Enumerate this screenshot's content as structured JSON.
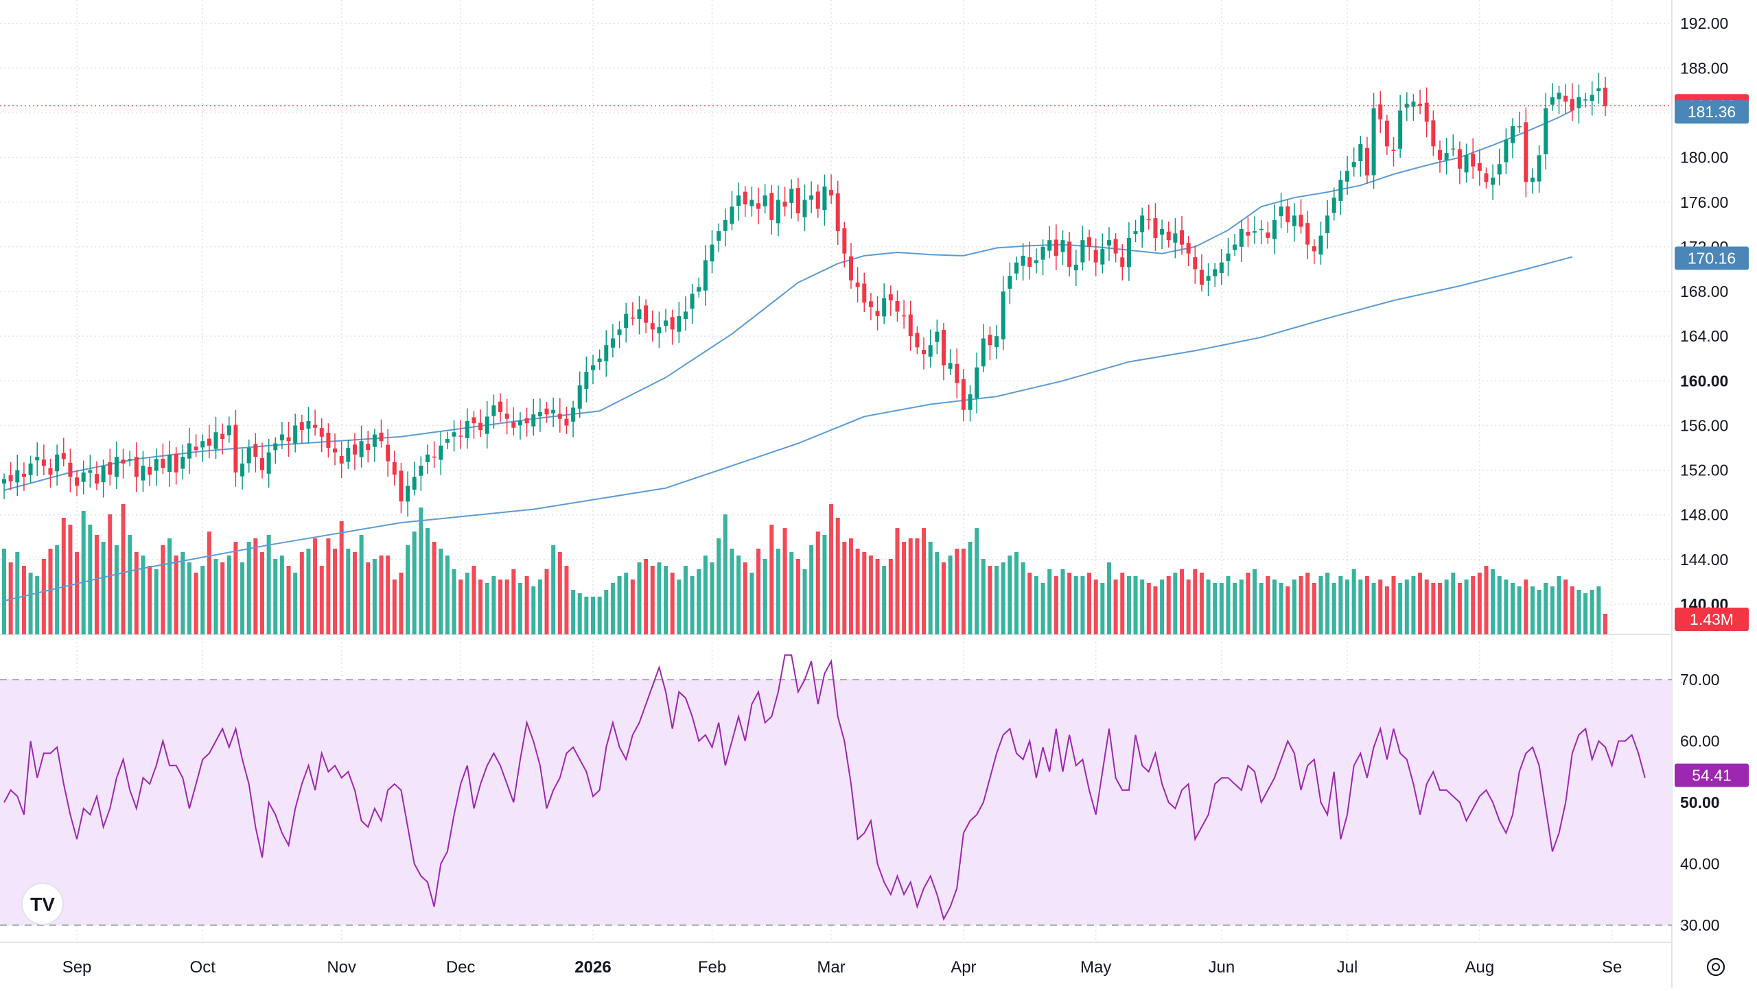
{
  "chart_data": [
    {
      "type": "candlestick",
      "title": "",
      "price_axis": {
        "ticks": [
          "192.00",
          "188.00",
          "184.00",
          "180.00",
          "176.00",
          "172.00",
          "168.00",
          "164.00",
          "160.00",
          "156.00",
          "152.00",
          "148.00",
          "144.00",
          "140.00"
        ],
        "bold_ticks": [
          "160.00",
          "140.00"
        ],
        "ylim": [
          137.3,
          194.1
        ]
      },
      "time_axis": {
        "labels": [
          "Sep",
          "Oct",
          "Nov",
          "Dec",
          "2026",
          "Feb",
          "Mar",
          "Apr",
          "May",
          "Jun",
          "Jul",
          "Aug",
          "Se"
        ],
        "bold_labels": [
          "2026"
        ],
        "label_bar_index": [
          11,
          30,
          51,
          69,
          89,
          107,
          125,
          145,
          165,
          184,
          203,
          223,
          243
        ]
      },
      "last_price": {
        "value": 184.63,
        "label": "184.63",
        "color": "#f23645"
      },
      "candle_colors": {
        "up": "#089981",
        "down": "#f23645"
      },
      "series": [
        {
          "name": "",
          "type": "ohlc",
          "close": [
            151.2,
            151.0,
            152.0,
            151.4,
            152.6,
            153.2,
            152.4,
            151.6,
            153.4,
            153.0,
            151.4,
            150.6,
            151.8,
            152.0,
            150.8,
            152.4,
            151.6,
            153.2,
            152.6,
            153.0,
            151.4,
            152.4,
            151.6,
            153.0,
            152.2,
            153.4,
            151.8,
            153.2,
            154.4,
            153.8,
            154.6,
            154.2,
            155.4,
            154.8,
            156.0,
            151.8,
            152.6,
            154.0,
            153.2,
            152.0,
            153.6,
            154.4,
            155.2,
            154.6,
            156.0,
            155.6,
            156.4,
            155.8,
            155.0,
            154.0,
            153.6,
            152.6,
            154.0,
            153.4,
            154.6,
            153.8,
            155.2,
            154.6,
            152.8,
            151.6,
            149.2,
            150.6,
            151.4,
            152.4,
            153.4,
            153.2,
            154.2,
            154.8,
            155.4,
            155.0,
            156.4,
            156.2,
            155.6,
            156.8,
            157.8,
            157.2,
            156.6,
            155.8,
            156.4,
            156.2,
            157.0,
            157.2,
            157.0,
            157.4,
            156.6,
            156.0,
            157.6,
            159.6,
            160.8,
            161.4,
            162.0,
            163.2,
            163.8,
            164.6,
            166.0,
            165.6,
            166.4,
            165.2,
            164.6,
            164.8,
            165.4,
            164.6,
            165.8,
            166.2,
            167.8,
            168.4,
            170.8,
            172.2,
            173.4,
            174.4,
            175.6,
            176.6,
            175.8,
            176.2,
            175.4,
            176.6,
            174.4,
            176.2,
            175.6,
            177.2,
            175.0,
            176.2,
            176.6,
            175.4,
            177.4,
            176.6,
            173.4,
            171.4,
            169.0,
            168.4,
            167.0,
            166.6,
            165.8,
            167.4,
            167.2,
            166.2,
            165.8,
            164.0,
            163.0,
            162.4,
            163.2,
            164.4,
            161.4,
            161.6,
            159.8,
            157.4,
            158.8,
            161.2,
            163.8,
            163.2,
            164.0,
            168.0,
            169.4,
            170.6,
            171.2,
            170.2,
            170.8,
            172.0,
            172.6,
            171.2,
            172.6,
            170.2,
            170.4,
            172.6,
            172.0,
            170.6,
            171.8,
            172.6,
            171.4,
            170.2,
            172.8,
            173.4,
            174.8,
            174.4,
            172.8,
            173.6,
            172.6,
            173.2,
            172.2,
            171.4,
            170.0,
            168.6,
            169.4,
            170.0,
            170.6,
            171.4,
            172.2,
            173.6,
            173.0,
            173.4,
            173.6,
            172.8,
            174.4,
            175.6,
            174.2,
            174.8,
            173.8,
            172.2,
            171.6,
            173.0,
            174.8,
            176.4,
            178.0,
            178.8,
            179.6,
            181.2,
            178.4,
            184.4,
            183.4,
            181.0,
            180.6,
            184.2,
            184.8,
            185.0,
            184.6,
            183.2,
            181.0,
            179.8,
            180.4,
            180.8,
            179.0,
            180.2,
            179.2,
            178.8,
            177.8,
            178.2,
            179.4,
            181.6,
            182.8,
            182.8,
            177.8,
            178.2,
            180.2,
            184.4,
            185.4,
            185.8,
            185.0,
            184.2,
            185.4,
            185.2,
            185.6,
            186.2,
            184.6
          ],
          "ohlc_note": "open/high/low are derived in the render script from each close"
        },
        {
          "name": "",
          "type": "moving_average",
          "color": "#5b9bd5",
          "label": "181.36",
          "x": [
            0,
            10,
            20,
            30,
            40,
            50,
            60,
            70,
            80,
            90,
            100,
            110,
            120,
            126,
            130,
            135,
            140,
            145,
            150,
            155,
            160,
            165,
            170,
            175,
            180,
            185,
            190,
            195,
            200,
            205,
            210,
            215,
            220,
            225,
            230,
            235,
            237
          ],
          "y": [
            150.2,
            151.8,
            153.0,
            153.7,
            154.2,
            154.6,
            155.0,
            155.8,
            156.6,
            157.3,
            160.3,
            164.2,
            168.8,
            170.5,
            171.2,
            171.5,
            171.3,
            171.2,
            171.9,
            172.1,
            172.2,
            172.0,
            171.7,
            171.4,
            172.0,
            173.5,
            175.6,
            176.4,
            176.9,
            177.5,
            178.5,
            179.3,
            180.0,
            181.1,
            182.3,
            183.6,
            184.2
          ],
          "last_value": 181.36
        },
        {
          "name": "",
          "type": "moving_average",
          "color": "#5b9bd5",
          "label": "170.16",
          "x": [
            0,
            20,
            40,
            60,
            80,
            100,
            120,
            130,
            140,
            150,
            160,
            170,
            180,
            190,
            200,
            210,
            220,
            230,
            237
          ],
          "y": [
            140.3,
            143.1,
            145.3,
            147.3,
            148.5,
            150.4,
            154.4,
            156.8,
            157.9,
            158.6,
            160.0,
            161.7,
            162.7,
            163.9,
            165.6,
            167.2,
            168.5,
            170.0,
            171.1
          ],
          "last_value": 170.16
        }
      ]
    },
    {
      "type": "bar",
      "title": "",
      "label": "1.43M",
      "note": "volume in arbitrary units; pane shares the price chart's time axis",
      "colors": {
        "up": "#22ab94",
        "down": "#f23645"
      },
      "values": [
        5.0,
        4.2,
        4.8,
        4.0,
        3.6,
        3.4,
        4.4,
        5.0,
        5.2,
        6.8,
        6.4,
        4.8,
        7.2,
        6.4,
        5.8,
        5.4,
        7.0,
        5.2,
        7.6,
        5.8,
        4.8,
        4.6,
        4.0,
        3.8,
        5.2,
        5.6,
        4.6,
        4.8,
        4.2,
        3.6,
        4.0,
        6.0,
        4.4,
        4.2,
        4.6,
        5.4,
        4.2,
        5.4,
        5.6,
        4.8,
        5.8,
        4.4,
        4.6,
        4.0,
        3.6,
        4.8,
        5.0,
        5.6,
        4.0,
        5.6,
        5.0,
        6.6,
        5.0,
        4.8,
        5.8,
        4.2,
        4.4,
        4.6,
        4.6,
        3.2,
        3.6,
        5.2,
        6.0,
        7.4,
        6.2,
        5.4,
        5.0,
        4.6,
        3.8,
        3.2,
        3.6,
        4.0,
        3.2,
        3.0,
        3.4,
        3.2,
        3.2,
        3.8,
        3.0,
        3.4,
        2.8,
        3.2,
        3.8,
        5.2,
        4.8,
        4.0,
        2.6,
        2.4,
        2.2,
        2.2,
        2.2,
        2.6,
        3.0,
        3.4,
        3.6,
        3.2,
        4.2,
        4.4,
        4.0,
        4.2,
        4.0,
        3.6,
        3.2,
        4.0,
        3.4,
        3.8,
        4.6,
        4.2,
        5.6,
        7.0,
        5.0,
        4.6,
        4.2,
        3.6,
        5.0,
        4.4,
        6.4,
        5.0,
        6.2,
        4.8,
        4.4,
        3.8,
        5.2,
        6.0,
        5.8,
        7.6,
        6.8,
        5.4,
        5.6,
        5.0,
        4.8,
        4.6,
        4.4,
        4.0,
        4.4,
        6.2,
        5.4,
        5.6,
        5.6,
        6.2,
        5.4,
        4.8,
        4.2,
        4.6,
        5.0,
        5.0,
        5.4,
        6.2,
        4.4,
        4.0,
        4.0,
        4.2,
        4.6,
        4.8,
        4.2,
        3.6,
        3.4,
        3.0,
        3.8,
        3.4,
        3.8,
        3.6,
        3.4,
        3.4,
        3.6,
        3.2,
        3.0,
        4.2,
        3.2,
        3.6,
        3.4,
        3.4,
        3.2,
        3.0,
        2.8,
        3.2,
        3.4,
        3.6,
        3.8,
        3.2,
        3.8,
        3.6,
        3.2,
        3.0,
        3.0,
        3.4,
        3.0,
        3.2,
        3.6,
        3.8,
        3.0,
        3.4,
        3.2,
        3.0,
        2.8,
        3.2,
        3.4,
        3.6,
        3.0,
        3.4,
        3.6,
        3.0,
        3.4,
        3.2,
        3.8,
        3.2,
        3.4,
        3.0,
        3.2,
        2.8,
        3.4,
        3.0,
        3.2,
        3.4,
        3.6,
        3.2,
        3.0,
        3.0,
        3.2,
        3.6,
        3.0,
        3.2,
        3.4,
        3.6,
        4.0,
        3.8,
        3.4,
        3.2,
        3.0,
        2.8,
        3.2,
        2.8,
        2.6,
        3.0,
        2.8,
        3.4,
        3.2,
        2.8,
        2.6,
        2.4,
        2.6,
        2.8,
        1.2
      ]
    },
    {
      "type": "line",
      "title": "",
      "label": "54.41",
      "last_value": 54.41,
      "color": "#9c27b0",
      "band": {
        "upper": 70,
        "lower": 30,
        "fill": "#f3e5fc"
      },
      "y_axis": {
        "ticks": [
          "70.00",
          "60.00",
          "50.00",
          "40.00",
          "30.00"
        ],
        "bold_ticks": [
          "50.00"
        ],
        "ylim": [
          27.2,
          72.8
        ]
      },
      "values": [
        50,
        52,
        51,
        48,
        60,
        54,
        58,
        58,
        59,
        53,
        48,
        44,
        49,
        48,
        51,
        46,
        49,
        54,
        57,
        52,
        49,
        54,
        53,
        56,
        60,
        56,
        56,
        54,
        49,
        53,
        57,
        58,
        60,
        62,
        59,
        62,
        57,
        53,
        46,
        41,
        50,
        48,
        45,
        43,
        49,
        53,
        56,
        52,
        58,
        55,
        56,
        54,
        55,
        52,
        47,
        46,
        49,
        47,
        52,
        53,
        52,
        46,
        40,
        38,
        37,
        33,
        40,
        42,
        48,
        53,
        56,
        49,
        53,
        56,
        58,
        56,
        53,
        50,
        57,
        63,
        60,
        56,
        49,
        52,
        54,
        58,
        59,
        57,
        55,
        51,
        52,
        59,
        63,
        59,
        57,
        61,
        63,
        66,
        69,
        72,
        68,
        62,
        68,
        67,
        64,
        60,
        61,
        59,
        63,
        56,
        60,
        64,
        60,
        66,
        68,
        63,
        64,
        68,
        74,
        74,
        68,
        70,
        73,
        66,
        71,
        73,
        64,
        60,
        53,
        44,
        45,
        47,
        40,
        37,
        35,
        38,
        35,
        37,
        33,
        36,
        38,
        35,
        31,
        33,
        36,
        45,
        47,
        48,
        50,
        54,
        58,
        61,
        62,
        58,
        57,
        60,
        54,
        59,
        55,
        62,
        55,
        61,
        56,
        57,
        52,
        48,
        55,
        62,
        54,
        52,
        52,
        61,
        56,
        55,
        58,
        53,
        50,
        49,
        52,
        53,
        44,
        46,
        48,
        53,
        54,
        54,
        53,
        52,
        56,
        55,
        50,
        52,
        54,
        57,
        60,
        58,
        52,
        56,
        57,
        50,
        48,
        55,
        44,
        48,
        56,
        58,
        54,
        59,
        62,
        57,
        62,
        58,
        57,
        53,
        48,
        53,
        55,
        52,
        52,
        51,
        50,
        47,
        49,
        51,
        52,
        50,
        47,
        45,
        48,
        55,
        58,
        59,
        56,
        49,
        42,
        45,
        50,
        58,
        61,
        62,
        57,
        60,
        59,
        56,
        60,
        60,
        61,
        58,
        54
      ]
    }
  ],
  "toolbar": {
    "logo_text": "TV",
    "settings_icon": "gear-icon"
  }
}
